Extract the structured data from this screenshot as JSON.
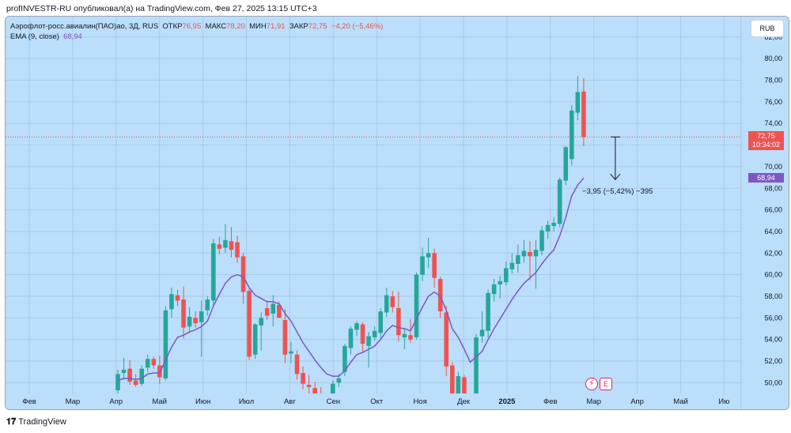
{
  "header": {
    "published_by": "profINVESTR-RU опубликовал(а) на TradingView.com, Фев 27, 2025 13:15 UTC+3"
  },
  "legend": {
    "symbol": "Аэрофлот-росс.авиалин(ПАО)ао, 3Д, RUS",
    "open_label": "ОТКР",
    "open_value": "76,95",
    "high_label": "МАКС",
    "high_value": "78,20",
    "low_label": "МИН",
    "low_value": "71,91",
    "close_label": "ЗАКР",
    "close_value": "72,75",
    "change": "−4,20 (−5,46%)",
    "ema_label": "EMA (9, close)",
    "ema_value": "68,94"
  },
  "currency": "RUB",
  "price_badge": {
    "price": "72,75",
    "countdown": "10:34:02"
  },
  "ema_badge": "68,94",
  "measure": {
    "label": "−3,95 (−5,42%) −395"
  },
  "footer": {
    "brand": "TradingView"
  },
  "colors": {
    "background": "#bbdefb",
    "up": "#26a69a",
    "down": "#ef5350",
    "ema": "#7e57c2"
  },
  "icons": [
    "flash-event-icon",
    "earnings-e-icon",
    "tradingview-logo"
  ],
  "chart_data": {
    "type": "candlestick",
    "timeframe": "3D",
    "x_labels": [
      "Фев",
      "Мар",
      "Апр",
      "Май",
      "Июн",
      "Июл",
      "Авг",
      "Сен",
      "Окт",
      "Ноя",
      "Дек",
      "2025",
      "Фев",
      "Мар",
      "Апр",
      "Май",
      "Ию"
    ],
    "y_ticks": [
      "50,00",
      "52,00",
      "54,00",
      "56,00",
      "58,00",
      "60,00",
      "62,00",
      "64,00",
      "66,00",
      "68,00",
      "70,00",
      "72,00",
      "74,00",
      "76,00",
      "78,00",
      "80,00",
      "82,00"
    ],
    "y_range": [
      49,
      83.6
    ],
    "last_price": 72.75,
    "candles": [
      {
        "o": 49.3,
        "h": 51.2,
        "l": 49.0,
        "c": 50.8
      },
      {
        "o": 50.9,
        "h": 52.3,
        "l": 50.3,
        "c": 51.2
      },
      {
        "o": 51.3,
        "h": 52.1,
        "l": 49.8,
        "c": 50.1
      },
      {
        "o": 50.2,
        "h": 50.8,
        "l": 49.6,
        "c": 49.8
      },
      {
        "o": 49.9,
        "h": 51.6,
        "l": 49.7,
        "c": 51.3
      },
      {
        "o": 51.4,
        "h": 52.6,
        "l": 51.0,
        "c": 52.2
      },
      {
        "o": 52.2,
        "h": 52.4,
        "l": 51.3,
        "c": 51.6
      },
      {
        "o": 51.6,
        "h": 52.5,
        "l": 49.9,
        "c": 50.5
      },
      {
        "o": 50.4,
        "h": 57.1,
        "l": 50.2,
        "c": 56.7
      },
      {
        "o": 56.8,
        "h": 58.8,
        "l": 56.0,
        "c": 58.2
      },
      {
        "o": 58.1,
        "h": 58.6,
        "l": 57.1,
        "c": 57.6
      },
      {
        "o": 57.7,
        "h": 58.9,
        "l": 54.1,
        "c": 55.1
      },
      {
        "o": 55.2,
        "h": 57.0,
        "l": 54.6,
        "c": 56.1
      },
      {
        "o": 56.0,
        "h": 56.6,
        "l": 55.1,
        "c": 55.5
      },
      {
        "o": 55.6,
        "h": 57.6,
        "l": 52.4,
        "c": 56.6
      },
      {
        "o": 56.7,
        "h": 58.0,
        "l": 56.2,
        "c": 57.7
      },
      {
        "o": 57.6,
        "h": 63.3,
        "l": 57.1,
        "c": 62.9
      },
      {
        "o": 62.8,
        "h": 63.5,
        "l": 61.9,
        "c": 62.4
      },
      {
        "o": 62.5,
        "h": 64.7,
        "l": 62.0,
        "c": 63.2
      },
      {
        "o": 63.1,
        "h": 64.4,
        "l": 61.6,
        "c": 62.3
      },
      {
        "o": 63.0,
        "h": 63.6,
        "l": 61.1,
        "c": 61.6
      },
      {
        "o": 61.7,
        "h": 62.0,
        "l": 57.3,
        "c": 58.4
      },
      {
        "o": 58.5,
        "h": 58.7,
        "l": 52.1,
        "c": 52.4
      },
      {
        "o": 52.6,
        "h": 55.5,
        "l": 52.2,
        "c": 55.4
      },
      {
        "o": 55.3,
        "h": 56.5,
        "l": 53.0,
        "c": 56.0
      },
      {
        "o": 56.9,
        "h": 57.6,
        "l": 55.8,
        "c": 56.2
      },
      {
        "o": 56.4,
        "h": 58.1,
        "l": 55.2,
        "c": 57.3
      },
      {
        "o": 57.2,
        "h": 57.5,
        "l": 56.0,
        "c": 56.0
      },
      {
        "o": 55.8,
        "h": 56.8,
        "l": 51.8,
        "c": 52.6
      },
      {
        "o": 52.7,
        "h": 53.8,
        "l": 51.8,
        "c": 52.9
      },
      {
        "o": 52.6,
        "h": 53.0,
        "l": 50.3,
        "c": 50.8
      },
      {
        "o": 50.9,
        "h": 51.5,
        "l": 49.4,
        "c": 49.9
      },
      {
        "o": 49.8,
        "h": 50.7,
        "l": 48.9,
        "c": 49.6
      },
      {
        "o": 49.5,
        "h": 50.1,
        "l": 48.6,
        "c": 49.0
      },
      {
        "o": 48.9,
        "h": 49.6,
        "l": 48.2,
        "c": 48.6
      },
      {
        "o": 48.6,
        "h": 49.0,
        "l": 47.8,
        "c": 48.3
      },
      {
        "o": 48.1,
        "h": 50.2,
        "l": 47.9,
        "c": 49.9
      },
      {
        "o": 50.0,
        "h": 50.8,
        "l": 49.6,
        "c": 50.4
      },
      {
        "o": 51.0,
        "h": 53.6,
        "l": 50.6,
        "c": 53.4
      },
      {
        "o": 53.2,
        "h": 55.2,
        "l": 52.6,
        "c": 55.0
      },
      {
        "o": 54.9,
        "h": 55.7,
        "l": 54.3,
        "c": 55.5
      },
      {
        "o": 55.4,
        "h": 55.6,
        "l": 52.9,
        "c": 53.6
      },
      {
        "o": 53.4,
        "h": 54.7,
        "l": 51.4,
        "c": 54.3
      },
      {
        "o": 54.2,
        "h": 55.2,
        "l": 53.9,
        "c": 54.8
      },
      {
        "o": 54.6,
        "h": 56.9,
        "l": 54.1,
        "c": 56.6
      },
      {
        "o": 56.5,
        "h": 58.8,
        "l": 56.1,
        "c": 58.1
      },
      {
        "o": 58.0,
        "h": 58.5,
        "l": 56.5,
        "c": 57.0
      },
      {
        "o": 56.9,
        "h": 58.4,
        "l": 53.8,
        "c": 54.4
      },
      {
        "o": 54.2,
        "h": 55.0,
        "l": 53.1,
        "c": 54.5
      },
      {
        "o": 54.4,
        "h": 55.9,
        "l": 53.7,
        "c": 54.0
      },
      {
        "o": 54.2,
        "h": 60.2,
        "l": 54.0,
        "c": 60.0
      },
      {
        "o": 60.0,
        "h": 62.5,
        "l": 59.4,
        "c": 61.7
      },
      {
        "o": 61.6,
        "h": 63.4,
        "l": 60.6,
        "c": 62.0
      },
      {
        "o": 62.0,
        "h": 62.4,
        "l": 58.8,
        "c": 59.7
      },
      {
        "o": 59.6,
        "h": 59.8,
        "l": 56.0,
        "c": 56.6
      },
      {
        "o": 56.5,
        "h": 57.1,
        "l": 50.6,
        "c": 51.5
      },
      {
        "o": 51.6,
        "h": 51.9,
        "l": 47.7,
        "c": 48.1
      },
      {
        "o": 48.3,
        "h": 51.0,
        "l": 47.9,
        "c": 50.6
      },
      {
        "o": 50.5,
        "h": 50.7,
        "l": 47.4,
        "c": 47.8
      },
      {
        "o": 47.7,
        "h": 48.6,
        "l": 45.5,
        "c": 46.8
      },
      {
        "o": 46.9,
        "h": 54.5,
        "l": 46.6,
        "c": 54.2
      },
      {
        "o": 54.3,
        "h": 56.6,
        "l": 53.7,
        "c": 54.9
      },
      {
        "o": 54.8,
        "h": 58.6,
        "l": 54.2,
        "c": 58.3
      },
      {
        "o": 58.2,
        "h": 59.6,
        "l": 57.5,
        "c": 59.1
      },
      {
        "o": 59.1,
        "h": 59.9,
        "l": 57.8,
        "c": 59.4
      },
      {
        "o": 59.3,
        "h": 61.2,
        "l": 59.0,
        "c": 60.6
      },
      {
        "o": 60.5,
        "h": 62.0,
        "l": 60.1,
        "c": 61.1
      },
      {
        "o": 61.0,
        "h": 62.8,
        "l": 60.2,
        "c": 61.8
      },
      {
        "o": 61.7,
        "h": 63.2,
        "l": 61.1,
        "c": 62.2
      },
      {
        "o": 62.1,
        "h": 63.1,
        "l": 59.5,
        "c": 61.7
      },
      {
        "o": 61.7,
        "h": 63.2,
        "l": 58.7,
        "c": 62.3
      },
      {
        "o": 62.2,
        "h": 64.5,
        "l": 61.8,
        "c": 64.1
      },
      {
        "o": 64.0,
        "h": 65.0,
        "l": 63.3,
        "c": 64.6
      },
      {
        "o": 64.5,
        "h": 65.3,
        "l": 64.0,
        "c": 64.8
      },
      {
        "o": 64.7,
        "h": 69.0,
        "l": 64.4,
        "c": 68.8
      },
      {
        "o": 68.7,
        "h": 71.9,
        "l": 68.3,
        "c": 71.8
      },
      {
        "o": 70.7,
        "h": 75.7,
        "l": 70.1,
        "c": 75.2
      },
      {
        "o": 75.0,
        "h": 78.4,
        "l": 74.3,
        "c": 76.9
      },
      {
        "o": 76.95,
        "h": 78.2,
        "l": 71.91,
        "c": 72.75
      }
    ],
    "ema": [
      50.2,
      50.4,
      50.4,
      50.3,
      50.4,
      50.8,
      50.9,
      50.9,
      52.1,
      53.3,
      54.2,
      54.4,
      54.7,
      54.9,
      55.2,
      55.7,
      57.1,
      58.2,
      59.2,
      59.8,
      60.0,
      59.8,
      58.8,
      58.1,
      57.8,
      57.5,
      57.5,
      57.3,
      56.4,
      55.7,
      54.7,
      53.7,
      52.9,
      52.1,
      51.4,
      50.8,
      50.6,
      50.6,
      51.1,
      51.9,
      52.6,
      52.8,
      53.1,
      53.4,
      54.0,
      54.8,
      55.3,
      55.1,
      55.0,
      54.8,
      55.9,
      57.0,
      58.0,
      58.4,
      58.0,
      56.7,
      55.0,
      54.2,
      53.1,
      51.9,
      52.4,
      52.9,
      54.0,
      55.0,
      55.9,
      56.8,
      57.7,
      58.5,
      59.2,
      59.7,
      60.2,
      61.0,
      61.7,
      62.3,
      63.6,
      65.3,
      67.3,
      68.3,
      68.94
    ]
  }
}
